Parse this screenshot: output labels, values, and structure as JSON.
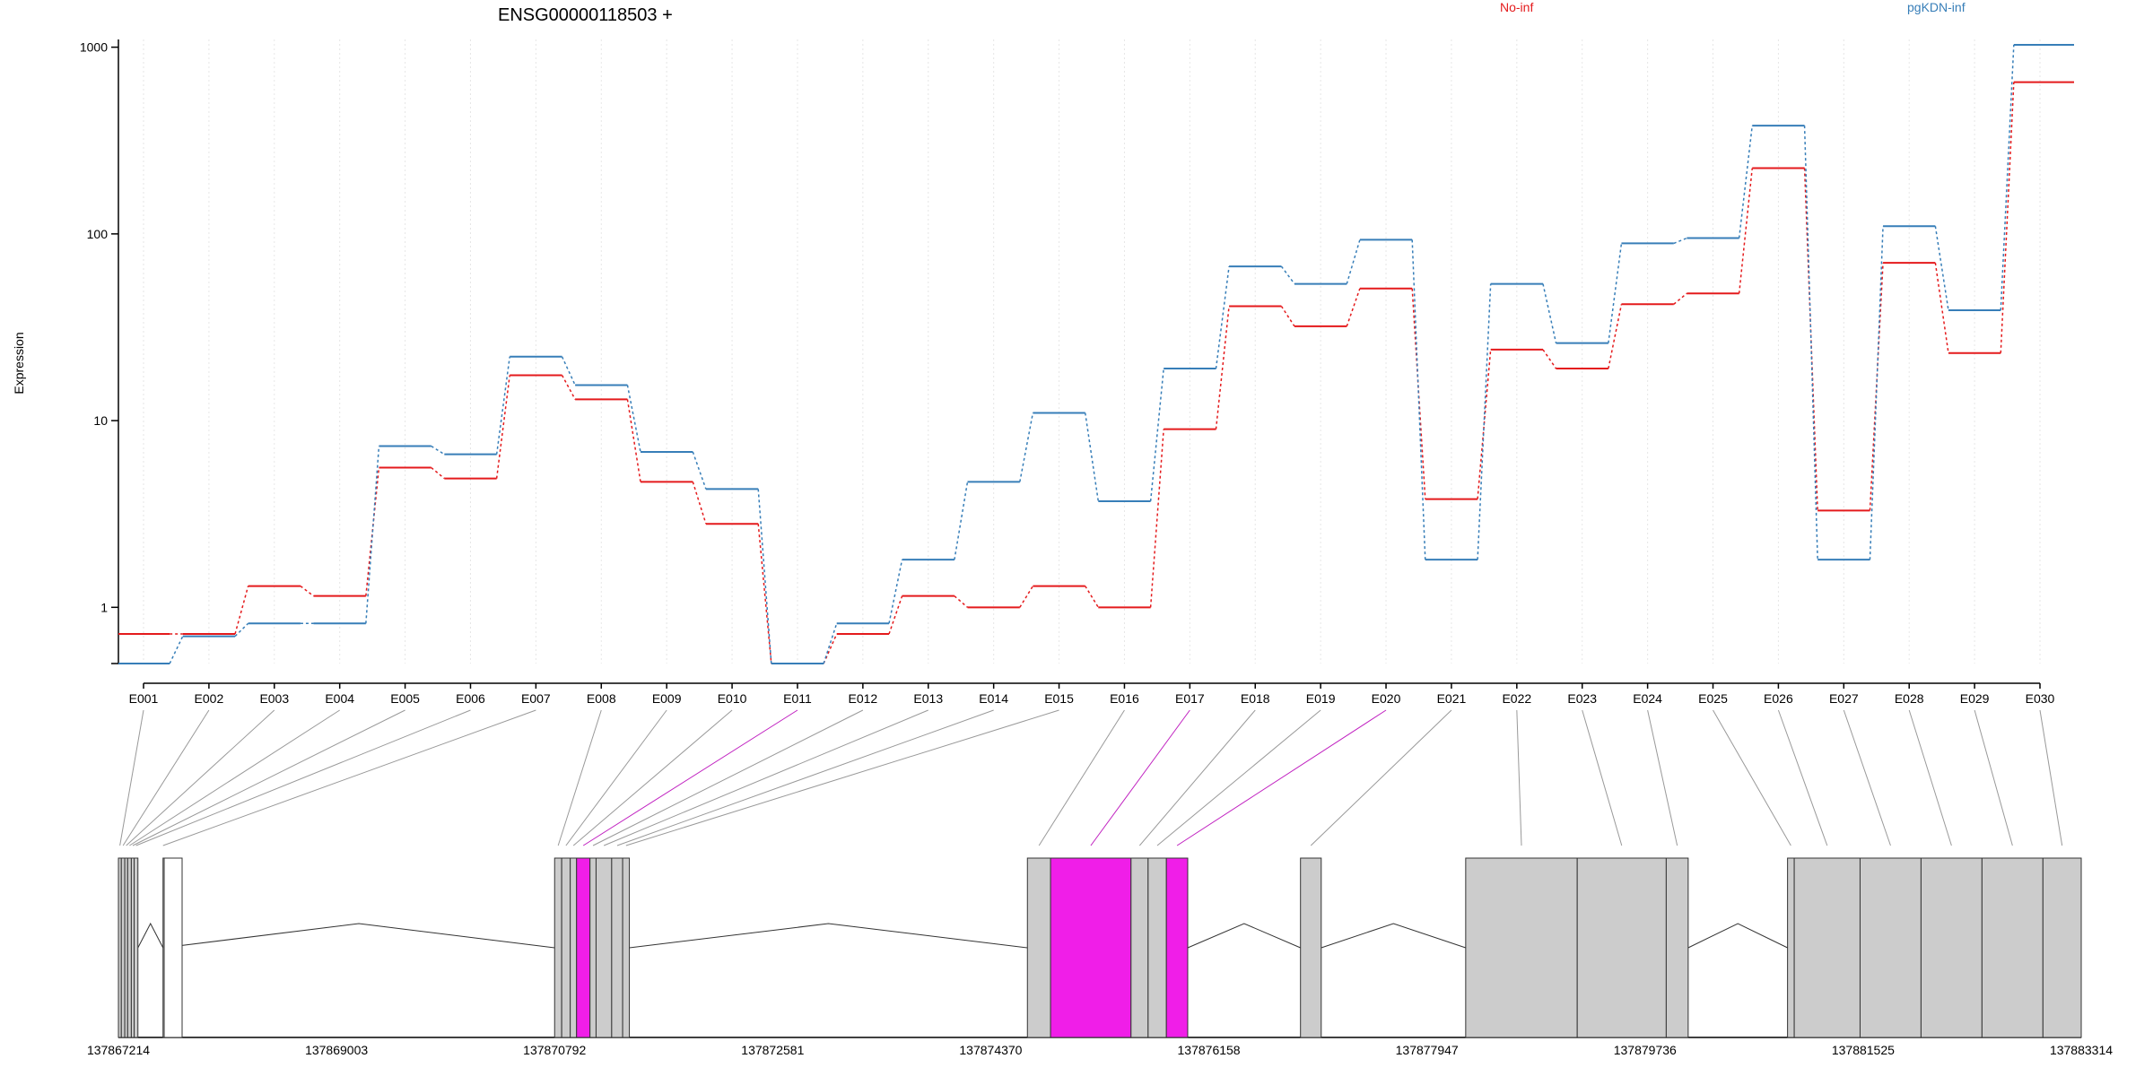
{
  "chart_data": {
    "type": "line",
    "title": "ENSG00000118503 +",
    "ylabel": "Expression",
    "xlabel": "",
    "y_scale": "log",
    "ylim": [
      0.5,
      1100
    ],
    "y_ticks": [
      1,
      10,
      100,
      1000
    ],
    "y_tick_labels": [
      "1",
      "10",
      "100",
      "1000"
    ],
    "grid": "vertical dotted",
    "categories": [
      "E001",
      "E002",
      "E003",
      "E004",
      "E005",
      "E006",
      "E007",
      "E008",
      "E009",
      "E010",
      "E011",
      "E012",
      "E013",
      "E014",
      "E015",
      "E016",
      "E017",
      "E018",
      "E019",
      "E020",
      "E021",
      "E022",
      "E023",
      "E024",
      "E025",
      "E026",
      "E027",
      "E028",
      "E029",
      "E030"
    ],
    "series": [
      {
        "name": "No-inf",
        "color": "#e41a1c",
        "values": [
          0.72,
          0.72,
          1.3,
          1.15,
          5.6,
          4.9,
          17.5,
          13,
          4.7,
          2.8,
          0.5,
          0.72,
          1.15,
          1.0,
          1.3,
          1.0,
          9,
          41,
          32,
          51,
          3.8,
          24,
          19,
          42,
          48,
          225,
          3.3,
          70,
          23,
          650
        ]
      },
      {
        "name": "pgKDN-inf",
        "color": "#377eb8",
        "values": [
          0.5,
          0.7,
          0.82,
          0.82,
          7.3,
          6.6,
          22,
          15.5,
          6.8,
          4.3,
          0.5,
          0.82,
          1.8,
          4.7,
          11,
          3.7,
          19,
          67,
          54,
          93,
          1.8,
          54,
          26,
          89,
          95,
          380,
          1.8,
          110,
          39,
          1030
        ]
      }
    ],
    "gene_model": {
      "coordinate_labels": [
        "137867214",
        "137869003",
        "137870792",
        "137872581",
        "137874370",
        "137876158",
        "137877947",
        "137879736",
        "137881525",
        "137883314"
      ],
      "coordinate_range": [
        137867214,
        137883314
      ],
      "exons": [
        {
          "id": "E001",
          "start": 137867214,
          "end": 137867238,
          "highlight": false
        },
        {
          "id": "E002",
          "start": 137867238,
          "end": 137867266,
          "highlight": false
        },
        {
          "id": "E003",
          "start": 137867266,
          "end": 137867290,
          "highlight": false
        },
        {
          "id": "E004",
          "start": 137867290,
          "end": 137867320,
          "highlight": false
        },
        {
          "id": "E005",
          "start": 137867320,
          "end": 137867343,
          "highlight": false
        },
        {
          "id": "E006",
          "start": 137867343,
          "end": 137867374,
          "highlight": false
        },
        {
          "id": "E007",
          "start": 137867580,
          "end": 137867580,
          "highlight": false
        },
        {
          "id": "E008",
          "start": 137870792,
          "end": 137870850,
          "highlight": false
        },
        {
          "id": "E009",
          "start": 137870850,
          "end": 137870920,
          "highlight": false
        },
        {
          "id": "E010",
          "start": 137870920,
          "end": 137870972,
          "highlight": false
        },
        {
          "id": "E011",
          "start": 137870972,
          "end": 137871082,
          "highlight": true
        },
        {
          "id": "E012",
          "start": 137871082,
          "end": 137871132,
          "highlight": false
        },
        {
          "id": "E013",
          "start": 137871132,
          "end": 137871260,
          "highlight": false
        },
        {
          "id": "E014",
          "start": 137871260,
          "end": 137871350,
          "highlight": false
        },
        {
          "id": "E015",
          "start": 137871350,
          "end": 137871405,
          "highlight": false
        },
        {
          "id": "E016",
          "start": 137874670,
          "end": 137874860,
          "highlight": false
        },
        {
          "id": "E017",
          "start": 137874860,
          "end": 137875520,
          "highlight": true
        },
        {
          "id": "E018",
          "start": 137875520,
          "end": 137875660,
          "highlight": false
        },
        {
          "id": "E019",
          "start": 137875660,
          "end": 137875810,
          "highlight": false
        },
        {
          "id": "E020",
          "start": 137875810,
          "end": 137875985,
          "highlight": true
        },
        {
          "id": "E021",
          "start": 137876910,
          "end": 137877080,
          "highlight": false
        },
        {
          "id": "E022",
          "start": 137878265,
          "end": 137879180,
          "highlight": false
        },
        {
          "id": "E023",
          "start": 137879180,
          "end": 137879910,
          "highlight": false
        },
        {
          "id": "E024",
          "start": 137879910,
          "end": 137880090,
          "highlight": false
        },
        {
          "id": "E025",
          "start": 137880905,
          "end": 137880960,
          "highlight": false
        },
        {
          "id": "E026",
          "start": 137880960,
          "end": 137881500,
          "highlight": false
        },
        {
          "id": "E027",
          "start": 137881500,
          "end": 137882000,
          "highlight": false
        },
        {
          "id": "E028",
          "start": 137882000,
          "end": 137882500,
          "highlight": false
        },
        {
          "id": "E029",
          "start": 137882500,
          "end": 137883000,
          "highlight": false
        },
        {
          "id": "E030",
          "start": 137883000,
          "end": 137883314,
          "highlight": false
        }
      ]
    }
  }
}
